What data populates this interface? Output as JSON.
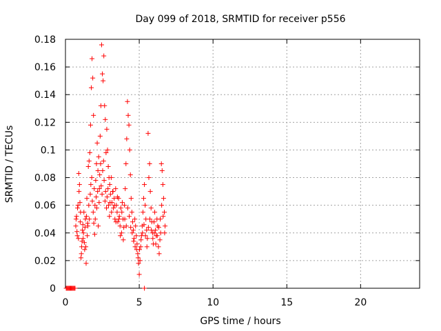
{
  "chart_data": {
    "type": "scatter",
    "title": "Day 099 of 2018, SRMTID for receiver p556",
    "xlabel": "GPS time / hours",
    "ylabel": "SRMTID / TECUs",
    "xlim": [
      0,
      24
    ],
    "ylim": [
      0,
      0.18
    ],
    "xticks": [
      0,
      5,
      10,
      15,
      20
    ],
    "yticks": [
      0,
      0.02,
      0.04,
      0.06,
      0.08,
      0.1,
      0.12,
      0.14,
      0.16,
      0.18
    ],
    "ytick_labels": [
      "0",
      "0.02",
      "0.04",
      "0.06",
      "0.08",
      "0.1",
      "0.12",
      "0.14",
      "0.16",
      "0.18"
    ],
    "grid": true,
    "marker": "+",
    "color": "#ff0000",
    "series": [
      {
        "name": "SRMTID",
        "points": [
          [
            0.05,
            0
          ],
          [
            0.1,
            0
          ],
          [
            0.15,
            0
          ],
          [
            0.2,
            0
          ],
          [
            0.25,
            0
          ],
          [
            0.3,
            0
          ],
          [
            0.35,
            0
          ],
          [
            0.4,
            0
          ],
          [
            0.45,
            0
          ],
          [
            0.5,
            0
          ],
          [
            0.55,
            0
          ],
          [
            0.6,
            0
          ],
          [
            0.65,
            0
          ],
          [
            5.35,
            0
          ],
          [
            0.7,
            0.045
          ],
          [
            0.75,
            0.052
          ],
          [
            0.8,
            0.038
          ],
          [
            0.85,
            0.06
          ],
          [
            0.9,
            0.083
          ],
          [
            0.95,
            0.075
          ],
          [
            1.0,
            0.048
          ],
          [
            1.05,
            0.022
          ],
          [
            1.1,
            0.03
          ],
          [
            1.15,
            0.042
          ],
          [
            1.2,
            0.036
          ],
          [
            1.25,
            0.055
          ],
          [
            1.3,
            0.028
          ],
          [
            1.35,
            0.05
          ],
          [
            1.4,
            0.018
          ],
          [
            1.45,
            0.065
          ],
          [
            1.5,
            0.047
          ],
          [
            1.55,
            0.088
          ],
          [
            1.6,
            0.092
          ],
          [
            1.65,
            0.098
          ],
          [
            1.7,
            0.118
          ],
          [
            1.75,
            0.145
          ],
          [
            1.8,
            0.166
          ],
          [
            1.85,
            0.152
          ],
          [
            1.9,
            0.125
          ],
          [
            1.95,
            0.072
          ],
          [
            0.72,
            0.05
          ],
          [
            0.78,
            0.041
          ],
          [
            0.82,
            0.058
          ],
          [
            0.88,
            0.036
          ],
          [
            0.92,
            0.07
          ],
          [
            0.98,
            0.062
          ],
          [
            1.02,
            0.055
          ],
          [
            1.08,
            0.025
          ],
          [
            1.12,
            0.034
          ],
          [
            1.18,
            0.046
          ],
          [
            1.22,
            0.04
          ],
          [
            1.28,
            0.033
          ],
          [
            1.32,
            0.044
          ],
          [
            1.38,
            0.03
          ],
          [
            1.42,
            0.052
          ],
          [
            1.48,
            0.038
          ],
          [
            1.52,
            0.045
          ],
          [
            1.58,
            0.06
          ],
          [
            1.62,
            0.05
          ],
          [
            1.68,
            0.068
          ],
          [
            1.72,
            0.075
          ],
          [
            1.78,
            0.08
          ],
          [
            1.82,
            0.063
          ],
          [
            1.88,
            0.055
          ],
          [
            1.92,
            0.047
          ],
          [
            1.98,
            0.039
          ],
          [
            2.0,
            0.06
          ],
          [
            2.05,
            0.078
          ],
          [
            2.1,
            0.09
          ],
          [
            2.15,
            0.105
          ],
          [
            2.2,
            0.085
          ],
          [
            2.25,
            0.095
          ],
          [
            2.3,
            0.072
          ],
          [
            2.35,
            0.11
          ],
          [
            2.4,
            0.132
          ],
          [
            2.45,
            0.176
          ],
          [
            2.5,
            0.155
          ],
          [
            2.55,
            0.15
          ],
          [
            2.6,
            0.168
          ],
          [
            2.65,
            0.132
          ],
          [
            2.7,
            0.122
          ],
          [
            2.75,
            0.098
          ],
          [
            2.8,
            0.115
          ],
          [
            2.85,
            0.1
          ],
          [
            2.9,
            0.088
          ],
          [
            2.95,
            0.08
          ],
          [
            2.02,
            0.05
          ],
          [
            2.08,
            0.066
          ],
          [
            2.12,
            0.058
          ],
          [
            2.18,
            0.07
          ],
          [
            2.22,
            0.045
          ],
          [
            2.28,
            0.062
          ],
          [
            2.32,
            0.082
          ],
          [
            2.38,
            0.09
          ],
          [
            2.42,
            0.074
          ],
          [
            2.48,
            0.068
          ],
          [
            2.52,
            0.085
          ],
          [
            2.58,
            0.092
          ],
          [
            2.62,
            0.078
          ],
          [
            2.68,
            0.063
          ],
          [
            2.72,
            0.07
          ],
          [
            2.78,
            0.058
          ],
          [
            2.82,
            0.066
          ],
          [
            2.88,
            0.072
          ],
          [
            2.92,
            0.06
          ],
          [
            2.98,
            0.052
          ],
          [
            3.0,
            0.075
          ],
          [
            3.05,
            0.068
          ],
          [
            3.1,
            0.08
          ],
          [
            3.15,
            0.062
          ],
          [
            3.2,
            0.07
          ],
          [
            3.25,
            0.058
          ],
          [
            3.3,
            0.065
          ],
          [
            3.35,
            0.05
          ],
          [
            3.4,
            0.072
          ],
          [
            3.45,
            0.06
          ],
          [
            3.5,
            0.055
          ],
          [
            3.55,
            0.048
          ],
          [
            3.6,
            0.065
          ],
          [
            3.65,
            0.052
          ],
          [
            3.7,
            0.045
          ],
          [
            3.75,
            0.058
          ],
          [
            3.8,
            0.04
          ],
          [
            3.85,
            0.062
          ],
          [
            3.9,
            0.05
          ],
          [
            3.95,
            0.044
          ],
          [
            3.02,
            0.062
          ],
          [
            3.12,
            0.055
          ],
          [
            3.22,
            0.07
          ],
          [
            3.32,
            0.06
          ],
          [
            3.42,
            0.048
          ],
          [
            3.52,
            0.066
          ],
          [
            3.62,
            0.05
          ],
          [
            3.72,
            0.038
          ],
          [
            3.82,
            0.055
          ],
          [
            3.92,
            0.035
          ],
          [
            4.0,
            0.06
          ],
          [
            4.05,
            0.072
          ],
          [
            4.1,
            0.09
          ],
          [
            4.15,
            0.108
          ],
          [
            4.2,
            0.135
          ],
          [
            4.25,
            0.125
          ],
          [
            4.3,
            0.118
          ],
          [
            4.35,
            0.1
          ],
          [
            4.4,
            0.082
          ],
          [
            4.45,
            0.065
          ],
          [
            4.5,
            0.055
          ],
          [
            4.55,
            0.048
          ],
          [
            4.6,
            0.042
          ],
          [
            4.65,
            0.036
          ],
          [
            4.7,
            0.05
          ],
          [
            4.75,
            0.045
          ],
          [
            4.8,
            0.038
          ],
          [
            4.85,
            0.032
          ],
          [
            4.9,
            0.025
          ],
          [
            4.95,
            0.018
          ],
          [
            4.02,
            0.05
          ],
          [
            4.12,
            0.045
          ],
          [
            4.22,
            0.058
          ],
          [
            4.32,
            0.052
          ],
          [
            4.42,
            0.044
          ],
          [
            4.52,
            0.04
          ],
          [
            4.62,
            0.034
          ],
          [
            4.72,
            0.03
          ],
          [
            4.82,
            0.028
          ],
          [
            4.92,
            0.022
          ],
          [
            5.0,
            0.01
          ],
          [
            5.05,
            0.02
          ],
          [
            5.1,
            0.03
          ],
          [
            5.15,
            0.038
          ],
          [
            5.2,
            0.045
          ],
          [
            5.25,
            0.055
          ],
          [
            5.3,
            0.065
          ],
          [
            5.35,
            0.075
          ],
          [
            5.4,
            0.06
          ],
          [
            5.45,
            0.05
          ],
          [
            5.5,
            0.042
          ],
          [
            5.55,
            0.036
          ],
          [
            5.6,
            0.112
          ],
          [
            5.65,
            0.08
          ],
          [
            5.7,
            0.09
          ],
          [
            5.75,
            0.07
          ],
          [
            5.8,
            0.058
          ],
          [
            5.85,
            0.048
          ],
          [
            5.9,
            0.04
          ],
          [
            5.95,
            0.032
          ],
          [
            5.02,
            0.028
          ],
          [
            5.12,
            0.035
          ],
          [
            5.22,
            0.04
          ],
          [
            5.32,
            0.046
          ],
          [
            5.42,
            0.038
          ],
          [
            5.52,
            0.03
          ],
          [
            5.62,
            0.044
          ],
          [
            5.72,
            0.05
          ],
          [
            5.82,
            0.042
          ],
          [
            5.92,
            0.036
          ],
          [
            6.0,
            0.048
          ],
          [
            6.05,
            0.055
          ],
          [
            6.1,
            0.042
          ],
          [
            6.15,
            0.038
          ],
          [
            6.2,
            0.05
          ],
          [
            6.25,
            0.045
          ],
          [
            6.3,
            0.03
          ],
          [
            6.35,
            0.025
          ],
          [
            6.4,
            0.035
          ],
          [
            6.45,
            0.04
          ],
          [
            6.5,
            0.09
          ],
          [
            6.55,
            0.085
          ],
          [
            6.6,
            0.075
          ],
          [
            6.65,
            0.065
          ],
          [
            6.7,
            0.055
          ],
          [
            6.75,
            0.045
          ],
          [
            6.02,
            0.04
          ],
          [
            6.12,
            0.032
          ],
          [
            6.22,
            0.038
          ],
          [
            6.32,
            0.044
          ],
          [
            6.42,
            0.05
          ],
          [
            6.52,
            0.06
          ],
          [
            6.62,
            0.052
          ],
          [
            6.72,
            0.04
          ]
        ]
      }
    ]
  }
}
